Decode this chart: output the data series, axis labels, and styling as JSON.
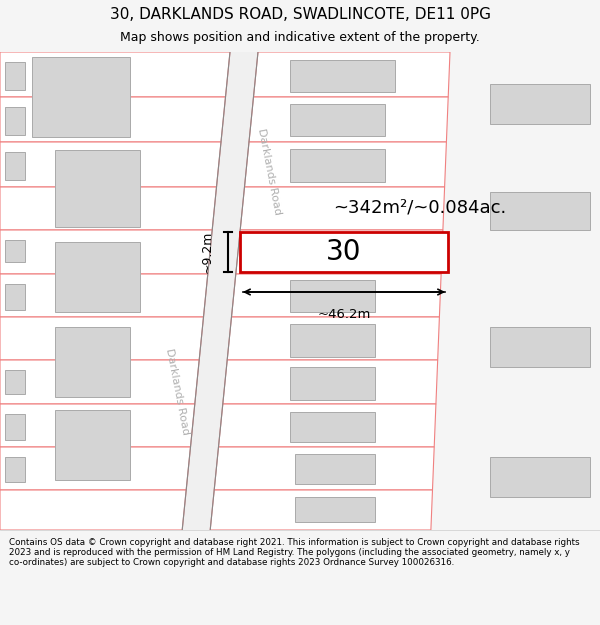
{
  "title_line1": "30, DARKLANDS ROAD, SWADLINCOTE, DE11 0PG",
  "title_line2": "Map shows position and indicative extent of the property.",
  "area_text": "~342m²/~0.084ac.",
  "width_label": "~46.2m",
  "height_label": "~9.2m",
  "property_number": "30",
  "road_label_top": "Darklands Road",
  "road_label_bot": "Darklands Road",
  "footer_text": "Contains OS data © Crown copyright and database right 2021. This information is subject to Crown copyright and database rights 2023 and is reproduced with the permission of HM Land Registry. The polygons (including the associated geometry, namely x, y co-ordinates) are subject to Crown copyright and database rights 2023 Ordnance Survey 100026316.",
  "bg_color": "#f5f5f5",
  "map_bg": "#ffffff",
  "property_rect_color": "#cc0000",
  "plot_line_color": "#f08080",
  "building_fill": "#d4d4d4",
  "building_edge": "#aaaaaa",
  "footer_bg": "#ffffff",
  "title_fontsize": 11,
  "subtitle_fontsize": 9
}
